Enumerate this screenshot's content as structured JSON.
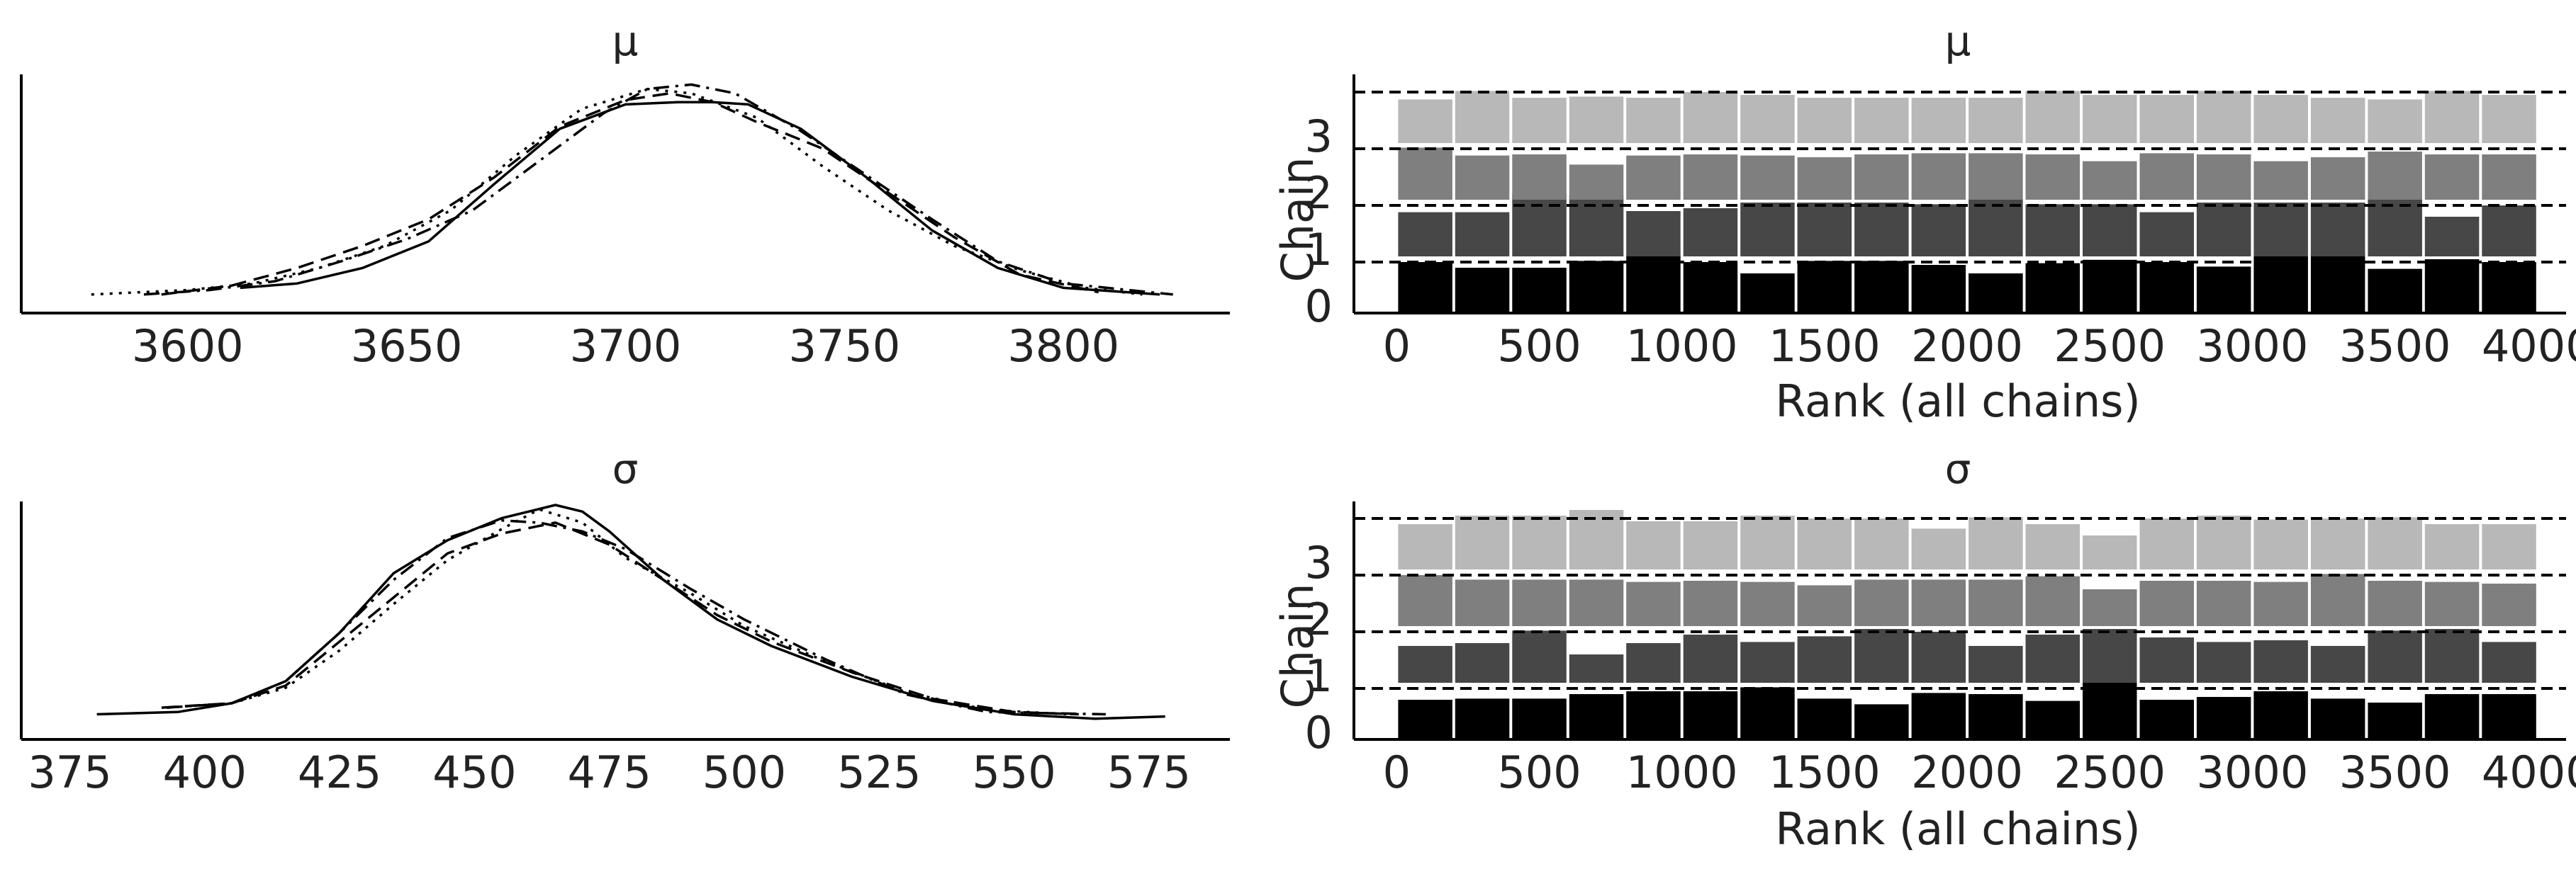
{
  "colors": {
    "axis": "#000000",
    "text": "#222222",
    "chain0": "#000000",
    "chain1": "#474747",
    "chain2": "#7f7f7f",
    "chain3": "#b8b8b8"
  },
  "chart_data": [
    {
      "type": "line",
      "title": "μ",
      "xlabel": "",
      "ylabel": "",
      "xlim": [
        3562,
        3838
      ],
      "x_ticks": [
        "3600",
        "3650",
        "3700",
        "3750",
        "3800"
      ],
      "legend": "none",
      "grid": false,
      "series": [
        {
          "style": "solid",
          "x": [
            3612,
            3625,
            3640,
            3655,
            3670,
            3685,
            3700,
            3712,
            3720,
            3728,
            3740,
            3755,
            3770,
            3785,
            3800,
            3822
          ],
          "y": [
            0.05,
            0.07,
            0.14,
            0.26,
            0.52,
            0.77,
            0.88,
            0.89,
            0.89,
            0.88,
            0.77,
            0.55,
            0.31,
            0.14,
            0.05,
            0.02
          ]
        },
        {
          "style": "dashed",
          "x": [
            3594,
            3610,
            3625,
            3640,
            3655,
            3670,
            3685,
            3700,
            3710,
            3720,
            3730,
            3745,
            3760,
            3775,
            3790,
            3808
          ],
          "y": [
            0.02,
            0.06,
            0.14,
            0.24,
            0.36,
            0.55,
            0.78,
            0.9,
            0.93,
            0.89,
            0.8,
            0.68,
            0.48,
            0.28,
            0.11,
            0.03
          ]
        },
        {
          "style": "dotted",
          "x": [
            3578,
            3600,
            3615,
            3630,
            3645,
            3660,
            3675,
            3690,
            3705,
            3715,
            3730,
            3745,
            3760,
            3775,
            3790,
            3805,
            3818
          ],
          "y": [
            0.02,
            0.04,
            0.07,
            0.14,
            0.24,
            0.4,
            0.65,
            0.86,
            0.95,
            0.93,
            0.82,
            0.6,
            0.4,
            0.24,
            0.13,
            0.05,
            0.02
          ]
        },
        {
          "style": "dashdot",
          "x": [
            3590,
            3605,
            3620,
            3635,
            3650,
            3665,
            3680,
            3695,
            3705,
            3715,
            3725,
            3740,
            3755,
            3770,
            3785,
            3800,
            3825
          ],
          "y": [
            0.02,
            0.04,
            0.08,
            0.17,
            0.27,
            0.4,
            0.62,
            0.84,
            0.95,
            0.97,
            0.93,
            0.76,
            0.56,
            0.36,
            0.17,
            0.07,
            0.02
          ]
        }
      ]
    },
    {
      "type": "bar",
      "title": "μ",
      "xlabel": "Rank (all chains)",
      "ylabel": "Chain",
      "x_ticks": [
        "0",
        "500",
        "1000",
        "1500",
        "2000",
        "2500",
        "3000",
        "3500",
        "4000"
      ],
      "xlim": [
        -150,
        4100
      ],
      "y_ticks": [
        "0",
        "1",
        "2",
        "3"
      ],
      "bins": [
        0,
        200,
        400,
        600,
        800,
        1000,
        1200,
        1400,
        1600,
        1800,
        2000,
        2200,
        2400,
        2600,
        2800,
        3000,
        3200,
        3400,
        3600,
        3800,
        4000
      ],
      "reference_lines": [
        0.9,
        1.9,
        2.9,
        3.9
      ],
      "legend": "none",
      "grid": false,
      "series": [
        {
          "name": "0",
          "offset": 0,
          "values": [
            0.9,
            0.8,
            0.8,
            0.92,
            1.02,
            0.9,
            0.7,
            0.92,
            0.92,
            0.85,
            0.7,
            0.88,
            0.94,
            0.9,
            0.82,
            1.0,
            1.06,
            0.78,
            0.95,
            0.9,
            0.77
          ]
        },
        {
          "name": "1",
          "offset": 1,
          "values": [
            0.78,
            0.78,
            1.1,
            1.07,
            0.8,
            0.85,
            0.95,
            0.95,
            0.95,
            0.92,
            1.02,
            0.92,
            0.92,
            0.78,
            0.95,
            0.95,
            0.95,
            1.02,
            0.7,
            0.9,
            1.0
          ]
        },
        {
          "name": "2",
          "offset": 2,
          "values": [
            0.92,
            0.78,
            0.8,
            0.62,
            0.78,
            0.8,
            0.78,
            0.75,
            0.8,
            0.82,
            0.82,
            0.8,
            0.68,
            0.82,
            0.8,
            0.68,
            0.75,
            0.85,
            0.8,
            0.8,
            0.8
          ]
        },
        {
          "name": "3",
          "offset": 3,
          "values": [
            0.77,
            0.92,
            0.8,
            0.82,
            0.8,
            0.9,
            0.85,
            0.8,
            0.8,
            0.8,
            0.8,
            0.92,
            0.85,
            0.85,
            0.92,
            0.85,
            0.8,
            0.77,
            0.92,
            0.85,
            0.8
          ]
        }
      ]
    },
    {
      "type": "line",
      "title": "σ",
      "xlabel": "",
      "ylabel": "",
      "xlim": [
        366,
        590
      ],
      "x_ticks": [
        "375",
        "400",
        "425",
        "450",
        "475",
        "500",
        "525",
        "550",
        "575"
      ],
      "legend": "none",
      "grid": false,
      "series": [
        {
          "style": "solid",
          "x": [
            380,
            395,
            405,
            415,
            425,
            435,
            445,
            455,
            465,
            470,
            475,
            485,
            495,
            505,
            520,
            535,
            550,
            565,
            578
          ],
          "y": [
            0.05,
            0.06,
            0.1,
            0.2,
            0.42,
            0.69,
            0.84,
            0.94,
            1.0,
            0.97,
            0.88,
            0.66,
            0.48,
            0.36,
            0.22,
            0.11,
            0.05,
            0.03,
            0.04
          ]
        },
        {
          "style": "dashed",
          "x": [
            392,
            405,
            415,
            425,
            435,
            445,
            455,
            465,
            475,
            485,
            495,
            505,
            520,
            535,
            550,
            562
          ],
          "y": [
            0.08,
            0.1,
            0.18,
            0.38,
            0.58,
            0.78,
            0.87,
            0.92,
            0.82,
            0.66,
            0.5,
            0.38,
            0.24,
            0.12,
            0.06,
            0.05
          ]
        },
        {
          "style": "dotted",
          "x": [
            393,
            405,
            415,
            425,
            435,
            445,
            455,
            462,
            470,
            478,
            490,
            500,
            515,
            530,
            545,
            560
          ],
          "y": [
            0.08,
            0.1,
            0.17,
            0.34,
            0.55,
            0.75,
            0.89,
            0.98,
            0.92,
            0.76,
            0.6,
            0.45,
            0.29,
            0.15,
            0.07,
            0.05
          ]
        },
        {
          "style": "dashdot",
          "x": [
            393,
            405,
            415,
            425,
            435,
            445,
            455,
            462,
            470,
            478,
            490,
            500,
            515,
            530,
            545,
            567
          ],
          "y": [
            0.08,
            0.1,
            0.2,
            0.42,
            0.66,
            0.85,
            0.93,
            0.92,
            0.88,
            0.8,
            0.62,
            0.48,
            0.3,
            0.14,
            0.06,
            0.05
          ]
        }
      ]
    },
    {
      "type": "bar",
      "title": "σ",
      "xlabel": "Rank (all chains)",
      "ylabel": "Chain",
      "x_ticks": [
        "0",
        "500",
        "1000",
        "1500",
        "2000",
        "2500",
        "3000",
        "3500",
        "4000"
      ],
      "xlim": [
        -150,
        4100
      ],
      "y_ticks": [
        "0",
        "1",
        "2",
        "3"
      ],
      "bins": [
        0,
        200,
        400,
        600,
        800,
        1000,
        1200,
        1400,
        1600,
        1800,
        2000,
        2200,
        2400,
        2600,
        2800,
        3000,
        3200,
        3400,
        3600,
        3800,
        4000
      ],
      "reference_lines": [
        0.9,
        1.9,
        2.9,
        3.9
      ],
      "legend": "none",
      "grid": false,
      "series": [
        {
          "name": "0",
          "offset": 0,
          "values": [
            0.7,
            0.72,
            0.72,
            0.8,
            0.85,
            0.85,
            0.92,
            0.72,
            0.62,
            0.82,
            0.8,
            0.68,
            1.05,
            0.7,
            0.75,
            0.85,
            0.72,
            0.65,
            0.8,
            0.8,
            0.65
          ]
        },
        {
          "name": "1",
          "offset": 1,
          "values": [
            0.65,
            0.7,
            0.92,
            0.5,
            0.7,
            0.85,
            0.72,
            0.82,
            0.95,
            0.9,
            0.65,
            0.85,
            0.95,
            0.8,
            0.72,
            0.75,
            0.65,
            0.92,
            0.95,
            0.72,
            0.8
          ]
        },
        {
          "name": "2",
          "offset": 2,
          "values": [
            0.9,
            0.82,
            0.82,
            0.82,
            0.78,
            0.8,
            0.78,
            0.72,
            0.82,
            0.82,
            0.82,
            0.88,
            0.65,
            0.8,
            0.8,
            0.78,
            0.92,
            0.8,
            0.78,
            0.75,
            0.95
          ]
        },
        {
          "name": "3",
          "offset": 3,
          "values": [
            0.8,
            0.95,
            0.95,
            1.05,
            0.85,
            0.85,
            0.95,
            0.9,
            0.9,
            0.72,
            0.92,
            0.8,
            0.6,
            0.9,
            0.95,
            0.88,
            0.9,
            0.92,
            0.8,
            0.8,
            0.85
          ]
        }
      ]
    }
  ]
}
